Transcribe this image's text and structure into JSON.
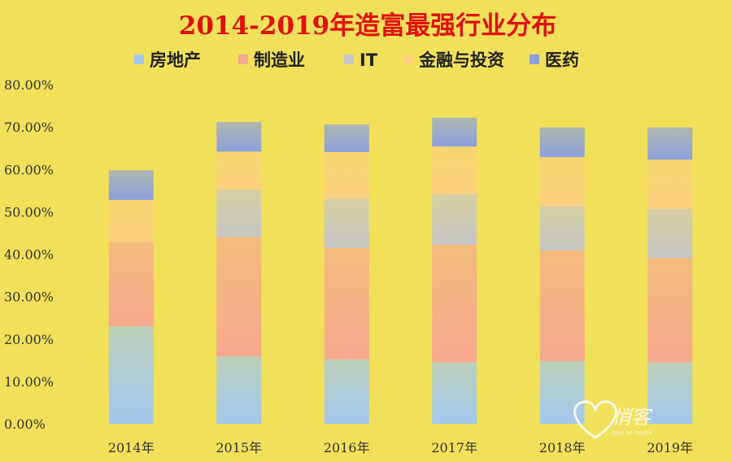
{
  "chart_data": {
    "type": "bar",
    "stacked": true,
    "title": "2014-2019年造富最强行业分布",
    "categories": [
      "2014年",
      "2015年",
      "2016年",
      "2017年",
      "2018年",
      "2019年"
    ],
    "series": [
      {
        "name": "房地产",
        "color": "#a3c8ee",
        "values": [
          23.0,
          16.0,
          15.2,
          14.5,
          14.8,
          14.5
        ]
      },
      {
        "name": "制造业",
        "color": "#f6a88f",
        "values": [
          19.8,
          28.0,
          26.3,
          27.7,
          26.1,
          24.6
        ]
      },
      {
        "name": "IT",
        "color": "#c7c7c7",
        "values": [
          0.0,
          11.2,
          11.6,
          12.0,
          10.4,
          11.6
        ]
      },
      {
        "name": "金融与投资",
        "color": "#fcd07e",
        "values": [
          10.0,
          9.0,
          11.0,
          11.2,
          11.6,
          11.6
        ]
      },
      {
        "name": "医药",
        "color": "#8ca0dc",
        "values": [
          7.0,
          7.0,
          6.5,
          6.8,
          7.0,
          7.6
        ]
      }
    ],
    "yticks": [
      "0.00%",
      "10.00%",
      "20.00%",
      "30.00%",
      "40.00%",
      "50.00%",
      "60.00%",
      "70.00%",
      "80.00%"
    ],
    "ylim": [
      0,
      80
    ],
    "legend_position": "top",
    "grid": false
  },
  "watermark": {
    "logo_text": "悄客",
    "sub_text": "qiao ke media"
  }
}
